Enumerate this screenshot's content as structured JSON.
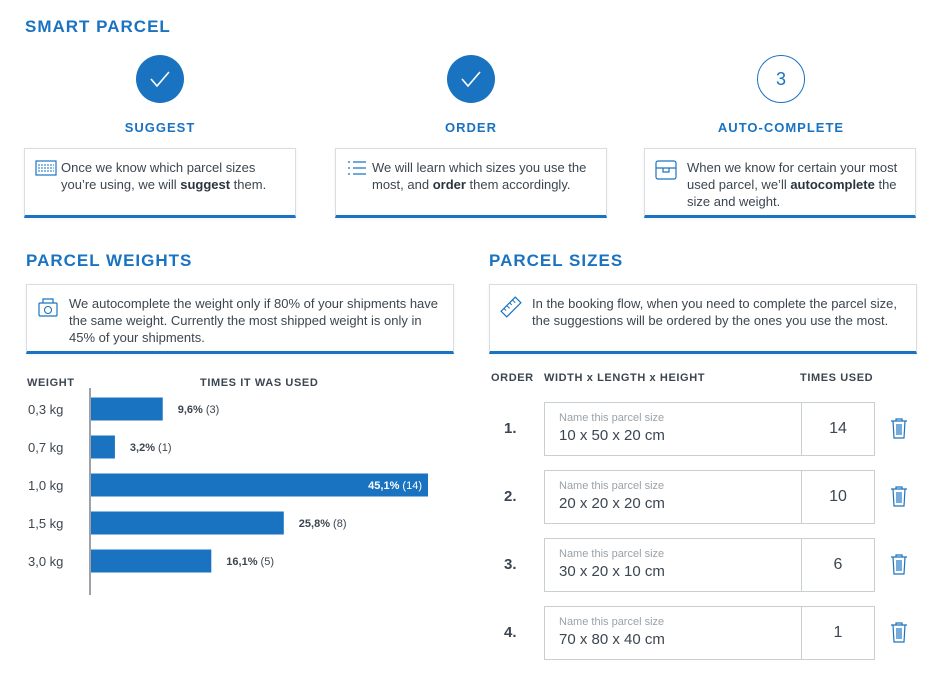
{
  "smart_parcel": {
    "title": "SMART PARCEL",
    "steps": [
      {
        "label": "SUGGEST",
        "status": "done",
        "number": "",
        "text_before": "Once we know which parcel sizes you’re using, we will ",
        "text_bold": "suggest",
        "text_after": " them.",
        "icon": "barcode-list-icon"
      },
      {
        "label": "ORDER",
        "status": "done",
        "number": "",
        "text_before": "We will learn which sizes you use the most, and ",
        "text_bold": "order",
        "text_after": " them accordingly.",
        "icon": "ordered-list-icon"
      },
      {
        "label": "AUTO-COMPLETE",
        "status": "current",
        "number": "3",
        "text_before": "When we know for certain your most used parcel, we’ll ",
        "text_bold": "autocomplete",
        "text_after": " the size and weight.",
        "icon": "parcel-box-icon"
      }
    ]
  },
  "weights": {
    "title": "PARCEL WEIGHTS",
    "info": "We autocomplete the weight only if 80% of your shipments have the same weight. Currently the most shipped weight is only in 45% of your shipments.",
    "icon": "scale-icon",
    "col_weight": "WEIGHT",
    "col_times": "TIMES IT WAS USED"
  },
  "chart_data": {
    "type": "bar",
    "orientation": "horizontal",
    "categories": [
      "0,3 kg",
      "0,7 kg",
      "1,0 kg",
      "1,5 kg",
      "3,0 kg"
    ],
    "values": [
      9.6,
      3.2,
      45.1,
      25.8,
      16.1
    ],
    "value_labels": [
      "9,6%",
      "3,2%",
      "45,1%",
      "25,8%",
      "16,1%"
    ],
    "counts": [
      "(3)",
      "(1)",
      "(14)",
      "(8)",
      "(5)"
    ],
    "xlabel": "TIMES IT WAS USED",
    "ylabel": "WEIGHT",
    "xlim": [
      0,
      45.1
    ],
    "bar_color": "#1a73c1",
    "grid": false
  },
  "sizes": {
    "title": "PARCEL SIZES",
    "info": "In the booking flow, when you need to complete the parcel size, the suggestions will be ordered by the ones you use the most.",
    "icon": "ruler-icon",
    "col_order": "ORDER",
    "col_dims": "WIDTH x LENGTH x HEIGHT",
    "col_times": "TIMES USED",
    "rows": [
      {
        "order": "1.",
        "placeholder": "Name this parcel size",
        "size": "10 x 50 x 20 cm",
        "times": "14"
      },
      {
        "order": "2.",
        "placeholder": "Name this parcel size",
        "size": "20 x 20 x 20 cm",
        "times": "10"
      },
      {
        "order": "3.",
        "placeholder": "Name this parcel size",
        "size": "30 x 20 x 10 cm",
        "times": "6"
      },
      {
        "order": "4.",
        "placeholder": "Name this parcel size",
        "size": "70 x 80 x 40 cm",
        "times": "1"
      }
    ]
  },
  "colors": {
    "accent": "#1a73c1",
    "text": "#3c4650",
    "border": "#c9ced3"
  }
}
